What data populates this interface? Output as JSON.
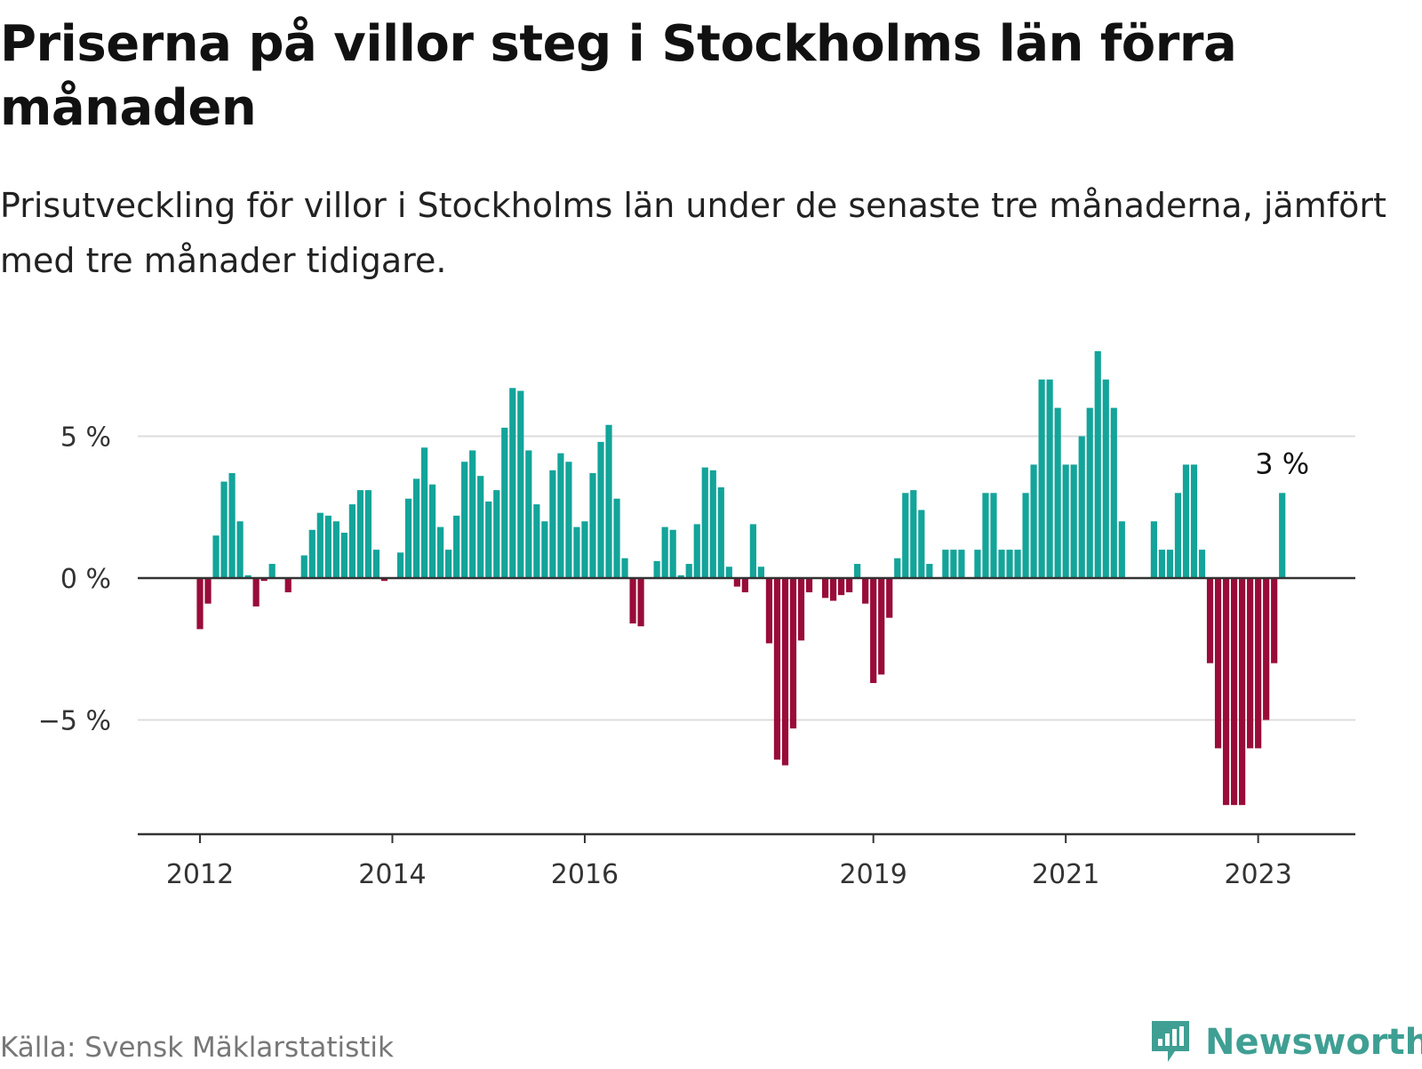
{
  "title": "Priserna på villor steg i Stockholms län förra månaden",
  "subtitle": "Prisutveckling för villor i Stockholms län under de senaste tre månaderna, jämfört med tre månader tidigare.",
  "source": "Källa: Svensk Mäklarstatistik",
  "logo": {
    "text": "Newsworthy",
    "icon": "newsworthy-chart-icon"
  },
  "colors": {
    "positive": "#13a49a",
    "negative": "#990c3a",
    "grid": "#dddddd",
    "axis": "#333333",
    "logo": "#3f9f93"
  },
  "chart_data": {
    "type": "bar",
    "title": "Priserna på villor steg i Stockholms län förra månaden",
    "subtitle": "Prisutveckling för villor i Stockholms län under de senaste tre månaderna, jämfört med tre månader tidigare.",
    "xlabel": "",
    "ylabel": "",
    "unit": "%",
    "start": "2012-01",
    "frequency": "monthly",
    "ylim": [
      -9.2,
      8.2
    ],
    "yticks": [
      {
        "value": 5,
        "label": "5 %"
      },
      {
        "value": 0,
        "label": "0 %"
      },
      {
        "value": -5,
        "label": "−5 %"
      }
    ],
    "xticks": [
      {
        "index": 0,
        "label": "2012"
      },
      {
        "index": 24,
        "label": "2014"
      },
      {
        "index": 48,
        "label": "2016"
      },
      {
        "index": 84,
        "label": "2019"
      },
      {
        "index": 108,
        "label": "2021"
      },
      {
        "index": 132,
        "label": "2023"
      }
    ],
    "annotation": {
      "index": 135,
      "label": "3 %"
    },
    "values": [
      -1.8,
      -0.9,
      1.5,
      3.4,
      3.7,
      2.0,
      0.1,
      -1.0,
      -0.1,
      0.5,
      null,
      -0.5,
      null,
      0.8,
      1.7,
      2.3,
      2.2,
      2.0,
      1.6,
      2.6,
      3.1,
      3.1,
      1.0,
      -0.1,
      null,
      0.9,
      2.8,
      3.5,
      4.6,
      3.3,
      1.8,
      1.0,
      2.2,
      4.1,
      4.5,
      3.6,
      2.7,
      3.1,
      5.3,
      6.7,
      6.6,
      4.5,
      2.6,
      2.0,
      3.8,
      4.4,
      4.1,
      1.8,
      2.0,
      3.7,
      4.8,
      5.4,
      2.8,
      0.7,
      -1.6,
      -1.7,
      null,
      0.6,
      1.8,
      1.7,
      0.1,
      0.5,
      1.9,
      3.9,
      3.8,
      3.2,
      0.4,
      -0.3,
      -0.5,
      1.9,
      0.4,
      -2.3,
      -6.4,
      -6.6,
      -5.3,
      -2.2,
      -0.5,
      null,
      -0.7,
      -0.8,
      -0.6,
      -0.5,
      0.5,
      -0.9,
      -3.7,
      -3.4,
      -1.4,
      0.7,
      3.0,
      3.1,
      2.4,
      0.5,
      null,
      1.0,
      1.0,
      1.0,
      null,
      1.0,
      3.0,
      3.0,
      1.0,
      1.0,
      1.0,
      3.0,
      4.0,
      7.0,
      7.0,
      6.0,
      4.0,
      4.0,
      5.0,
      6.0,
      8.0,
      7.0,
      6.0,
      2.0,
      null,
      null,
      null,
      2.0,
      1.0,
      1.0,
      3.0,
      4.0,
      4.0,
      1.0,
      -3.0,
      -6.0,
      -8.0,
      -8.0,
      -8.0,
      -6.0,
      -6.0,
      -5.0,
      -3.0,
      3.0
    ]
  }
}
